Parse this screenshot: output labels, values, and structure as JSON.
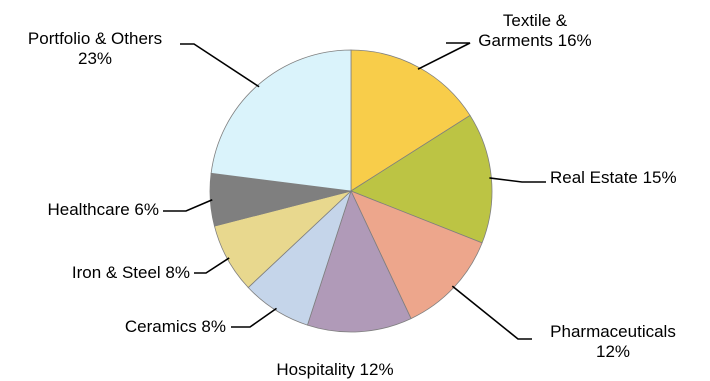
{
  "chart_data": {
    "type": "pie",
    "title": "",
    "start_angle_deg": 0,
    "direction": "clockwise",
    "slices": [
      {
        "label": "Textile & Garments 16%",
        "label_lines": [
          "Textile &",
          "Garments 16%"
        ],
        "value": 16,
        "color": "#f8cd4a"
      },
      {
        "label": "Real Estate 15%",
        "label_lines": [
          "Real Estate 15%"
        ],
        "value": 15,
        "color": "#bcc444"
      },
      {
        "label": "Pharmaceuticals 12%",
        "label_lines": [
          "Pharmaceuticals",
          "12%"
        ],
        "value": 12,
        "color": "#eda68c"
      },
      {
        "label": "Hospitality 12%",
        "label_lines": [
          "Hospitality 12%"
        ],
        "value": 12,
        "color": "#b09ab8"
      },
      {
        "label": "Ceramics 8%",
        "label_lines": [
          "Ceramics 8%"
        ],
        "value": 8,
        "color": "#c5d5ea"
      },
      {
        "label": "Iron & Steel 8%",
        "label_lines": [
          "Iron & Steel 8%"
        ],
        "value": 8,
        "color": "#e8d88e"
      },
      {
        "label": "Healthcare 6%",
        "label_lines": [
          "Healthcare 6%"
        ],
        "value": 6,
        "color": "#7f7f7f"
      },
      {
        "label": "Portfolio & Others 23%",
        "label_lines": [
          "Portfolio & Others",
          "23%"
        ],
        "value": 23,
        "color": "#daf3fb"
      }
    ]
  }
}
